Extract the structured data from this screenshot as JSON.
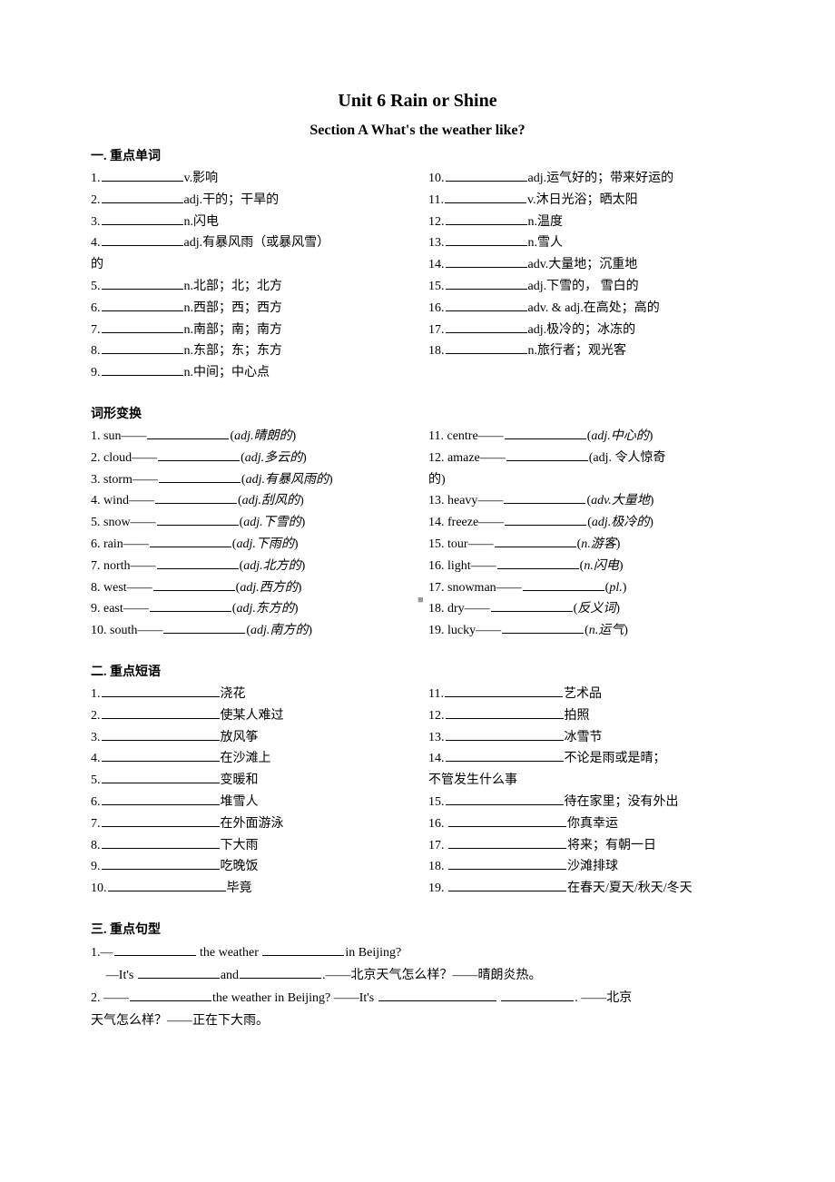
{
  "title": "Unit 6     Rain or Shine",
  "subtitle": "Section A    What's the weather like?",
  "sections": {
    "vocab_head": "一.          重点单词",
    "vocab_left": [
      {
        "n": "1.",
        "t": "v.影响"
      },
      {
        "n": "2.",
        "t": "adj.干的；干旱的"
      },
      {
        "n": "3.",
        "t": "n.闪电"
      },
      {
        "n": "4.",
        "t": "adj.有暴风雨（或暴风雪）"
      },
      {
        "n": "的",
        "t": ""
      },
      {
        "n": "5.",
        "t": "n.北部；北；北方"
      },
      {
        "n": "6.",
        "t": "n.西部；西；西方"
      },
      {
        "n": "7.",
        "t": "n.南部；南；南方"
      },
      {
        "n": "8.",
        "t": "n.东部；东；东方"
      },
      {
        "n": "9.",
        "t": "n.中间；中心点"
      }
    ],
    "vocab_right": [
      {
        "n": "10.",
        "t": "adj.运气好的；带来好运的"
      },
      {
        "n": "11.",
        "t": "v.沐日光浴；晒太阳"
      },
      {
        "n": "12.",
        "t": "n.温度"
      },
      {
        "n": "13.",
        "t": "n.雪人"
      },
      {
        "n": "14.",
        "t": "adv.大量地；沉重地"
      },
      {
        "n": "15.",
        "t": "adj.下雪的， 雪白的"
      },
      {
        "n": "16.",
        "t": "adv. & adj.在高处；高的"
      },
      {
        "n": "17.",
        "t": "adj.极冷的；冰冻的"
      },
      {
        "n": "18.",
        "t": "n.旅行者；观光客"
      }
    ],
    "forms_head": "词形变换",
    "forms_left": [
      {
        "p": "1. sun——",
        "s": "(adj.晴朗的)"
      },
      {
        "p": "2. cloud——",
        "s": "(adj.多云的)"
      },
      {
        "p": "3. storm——",
        "s": "(adj.有暴风雨的)"
      },
      {
        "p": "4. wind——",
        "s": "(adj.刮风的)"
      },
      {
        "p": "5. snow——",
        "s": "(adj.下雪的)"
      },
      {
        "p": "6. rain——",
        "s": "(adj.下雨的)"
      },
      {
        "p": "7. north——",
        "s": "(adj.北方的)"
      },
      {
        "p": "8. west——",
        "s": "(adj.西方的)"
      },
      {
        "p": "9. east——",
        "s": "(adj.东方的)"
      },
      {
        "p": "10. south——",
        "s": "(adj.南方的)"
      }
    ],
    "forms_right": [
      {
        "p": "11. centre——",
        "s": "(adj.中心的)"
      },
      {
        "p": "12. amaze——",
        "s": "(adj. 令人惊奇"
      },
      {
        "p": "的)",
        "s": ""
      },
      {
        "p": "13. heavy——",
        "s": "(adv.大量地)"
      },
      {
        "p": "14. freeze——",
        "s": "(adj.极冷的)"
      },
      {
        "p": "15. tour——",
        "s": "(n.游客)"
      },
      {
        "p": "16. light——",
        "s": "(n.闪电)"
      },
      {
        "p": "17. snowman——",
        "s": "(pl.)"
      },
      {
        "p": "18. dry——",
        "s": "(反义词)"
      },
      {
        "p": "19. lucky——",
        "s": "(n.运气)"
      }
    ],
    "phrases_head": "二.          重点短语",
    "phrases_left": [
      {
        "n": "1.",
        "t": "浇花"
      },
      {
        "n": "2.",
        "t": "使某人难过"
      },
      {
        "n": "3.",
        "t": "放风筝"
      },
      {
        "n": "4.",
        "t": "在沙滩上"
      },
      {
        "n": "5.",
        "t": "变暖和"
      },
      {
        "n": "6.",
        "t": "堆雪人"
      },
      {
        "n": "7.",
        "t": "在外面游泳"
      },
      {
        "n": "8.",
        "t": "下大雨"
      },
      {
        "n": "9.",
        "t": "吃晚饭"
      },
      {
        "n": "10.",
        "t": "毕竟"
      }
    ],
    "phrases_right": [
      {
        "n": "11.",
        "t": "艺术品"
      },
      {
        "n": "12.",
        "t": "拍照"
      },
      {
        "n": "13.",
        "t": "冰雪节"
      },
      {
        "n": "14.",
        "t": "不论是雨或是晴；"
      },
      {
        "n": "",
        "t": "不管发生什么事"
      },
      {
        "n": "15.",
        "t": "待在家里；没有外出"
      },
      {
        "n": "16. ",
        "t": "你真幸运"
      },
      {
        "n": "17. ",
        "t": "将来；有朝一日"
      },
      {
        "n": "18. ",
        "t": "沙滩排球"
      },
      {
        "n": "19. ",
        "t": "在春天/夏天/秋天/冬天"
      }
    ],
    "sent_head": "三.          重点句型",
    "sent": {
      "s1a": "1.—",
      "s1b": " the weather ",
      "s1c": "in Beijing?",
      "s1d": "—It's ",
      "s1e": "and",
      "s1f": ".——北京天气怎么样？——晴朗炎热。",
      "s2a": "2. ——",
      "s2b": "the weather in Beijing? ——It's ",
      "s2c": " ",
      "s2d": ". ——北京",
      "s2e": "天气怎么样？——正在下大雨。"
    }
  },
  "page_mark": "■"
}
